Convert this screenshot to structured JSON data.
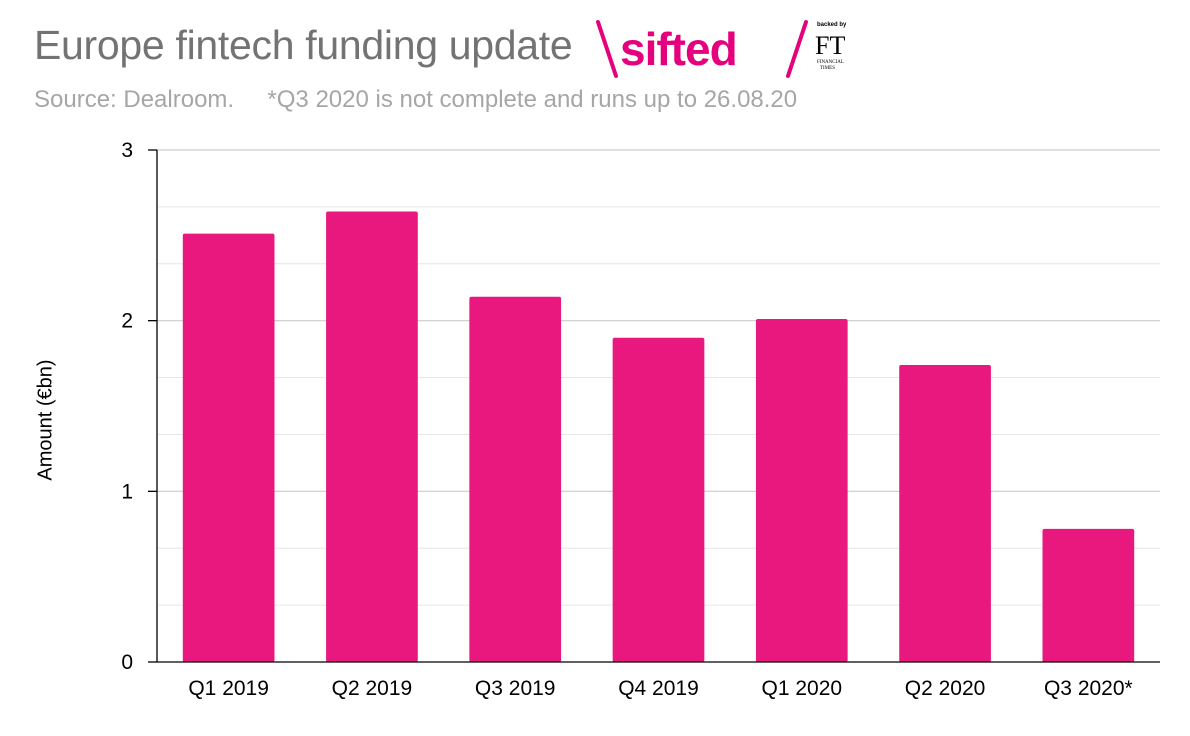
{
  "header": {
    "title": "Europe fintech funding update",
    "subtitle": "Source: Dealroom.     *Q3 2020 is not complete and runs up to 26.08.20"
  },
  "logo": {
    "brand": "sifted",
    "backed_by": "backed by",
    "ft_monogram": "FT",
    "ft_line1": "FINANCIAL",
    "ft_line2": "TIMES",
    "brand_color": "#e5007d"
  },
  "chart_data": {
    "type": "bar",
    "title": "Europe fintech funding update",
    "ylabel": "Amount (€bn)",
    "xlabel": "",
    "categories": [
      "Q1 2019",
      "Q2 2019",
      "Q3 2019",
      "Q4 2019",
      "Q1 2020",
      "Q2 2020",
      "Q3 2020*"
    ],
    "values": [
      2.51,
      2.64,
      2.14,
      1.9,
      2.01,
      1.74,
      0.78
    ],
    "ylim": [
      0,
      3
    ],
    "yticks": [
      0,
      1,
      2,
      3
    ],
    "grid": true,
    "bar_color": "#e8187e",
    "legend": "none"
  }
}
